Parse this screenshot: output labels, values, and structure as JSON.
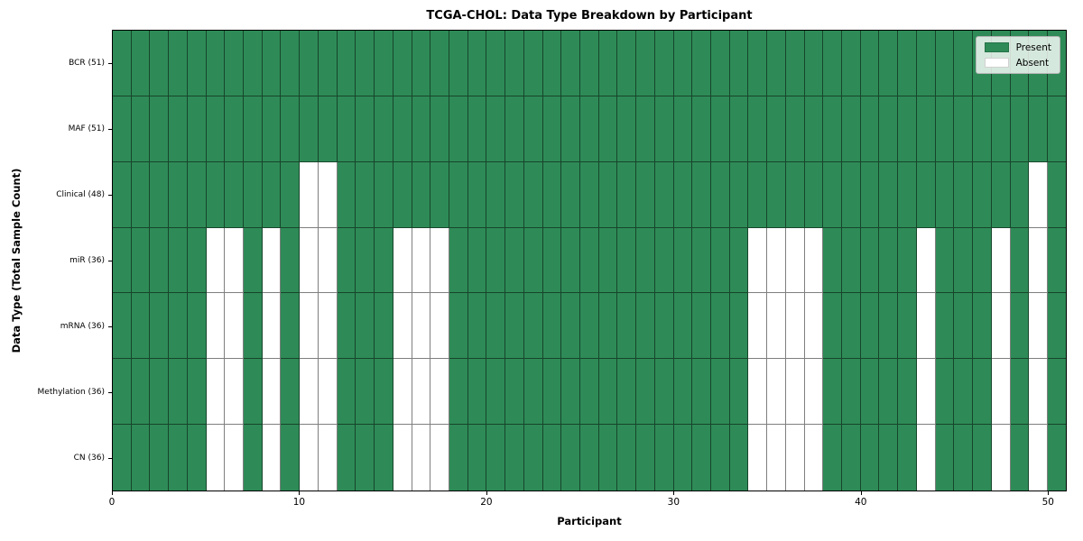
{
  "chart_data": {
    "type": "heatmap",
    "title": "TCGA-CHOL: Data Type Breakdown by Participant",
    "xlabel": "Participant",
    "ylabel": "Data Type (Total Sample Count)",
    "x_ticks": [
      0,
      10,
      20,
      30,
      40,
      50
    ],
    "xlim": [
      0,
      51
    ],
    "n_participants": 51,
    "grid_on": true,
    "legend_position": "upper right",
    "colors": {
      "present": "#2e8b57",
      "absent": "#ffffff",
      "gridline": "rgba(0,0,0,0.5)",
      "plot_border": "#000000"
    },
    "legend": [
      {
        "label": "Present",
        "color": "#2e8b57"
      },
      {
        "label": "Absent",
        "color": "#ffffff"
      }
    ],
    "rows": [
      {
        "label": "BCR (51)",
        "present_count": 51,
        "absent_participants": []
      },
      {
        "label": "MAF (51)",
        "present_count": 51,
        "absent_participants": []
      },
      {
        "label": "Clinical (48)",
        "present_count": 48,
        "absent_participants": [
          10,
          11,
          49
        ]
      },
      {
        "label": "miR (36)",
        "present_count": 36,
        "absent_participants": [
          5,
          6,
          8,
          10,
          11,
          15,
          16,
          17,
          34,
          35,
          36,
          37,
          43,
          47,
          49
        ]
      },
      {
        "label": "mRNA (36)",
        "present_count": 36,
        "absent_participants": [
          5,
          6,
          8,
          10,
          11,
          15,
          16,
          17,
          34,
          35,
          36,
          37,
          43,
          47,
          49
        ]
      },
      {
        "label": "Methylation (36)",
        "present_count": 36,
        "absent_participants": [
          5,
          6,
          8,
          10,
          11,
          15,
          16,
          17,
          34,
          35,
          36,
          37,
          43,
          47,
          49
        ]
      },
      {
        "label": "CN (36)",
        "present_count": 36,
        "absent_participants": [
          5,
          6,
          8,
          10,
          11,
          15,
          16,
          17,
          34,
          35,
          36,
          37,
          43,
          47,
          49
        ]
      }
    ]
  }
}
